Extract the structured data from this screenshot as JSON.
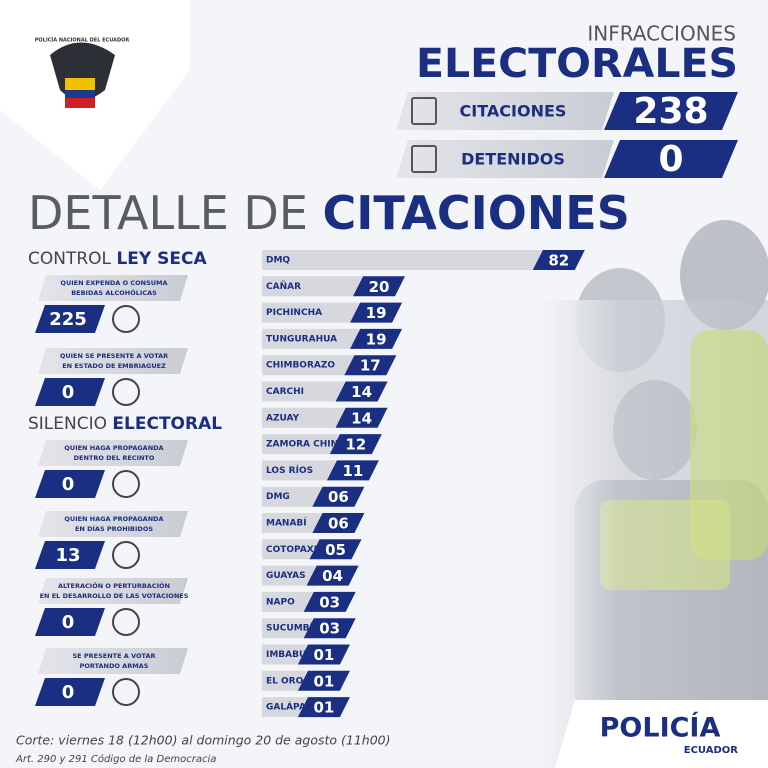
{
  "header": {
    "emblem_text": "POLICÍA NACIONAL DEL ECUADOR",
    "title_top": "INFRACCIONES",
    "title_main": "ELECTORALES",
    "stats": [
      {
        "label": "CITACIONES",
        "value": "238"
      },
      {
        "label": "DETENIDOS",
        "value": "0"
      }
    ]
  },
  "section_title": {
    "light": "DETALLE DE",
    "bold": "CITACIONES"
  },
  "groups": [
    {
      "title_light": "CONTROL",
      "title_bold": "LEY SECA",
      "items": [
        {
          "lines": [
            "QUIEN EXPENDA O CONSUMA",
            "BEBIDAS ALCOHÓLICAS"
          ],
          "count": "225"
        },
        {
          "lines": [
            "QUIEN SE PRESENTE A VOTAR",
            "EN ESTADO DE EMBRIAGUEZ"
          ],
          "count": "0"
        }
      ]
    },
    {
      "title_light": "SILENCIO",
      "title_bold": "ELECTORAL",
      "items": [
        {
          "lines": [
            "QUIEN HAGA PROPAGANDA",
            "DENTRO DEL RECINTO"
          ],
          "count": "0"
        },
        {
          "lines": [
            "QUIEN HAGA PROPAGANDA",
            "EN DÍAS PROHIBIDOS"
          ],
          "count": "13"
        },
        {
          "lines": [
            "ALTERACIÓN O PERTURBACIÓN",
            "EN EL DESARROLLO DE LAS VOTACIONES"
          ],
          "count": "0"
        },
        {
          "lines": [
            "SE PRESENTE A VOTAR",
            "PORTANDO ARMAS"
          ],
          "count": "0"
        }
      ]
    }
  ],
  "chart_data": {
    "type": "bar",
    "orientation": "horizontal",
    "categories": [
      "DMQ",
      "CAÑAR",
      "PICHINCHA",
      "TUNGURAHUA",
      "CHIMBORAZO",
      "CARCHI",
      "AZUAY",
      "ZAMORA CHINCHIPE",
      "LOS RÍOS",
      "DMG",
      "MANABÍ",
      "COTOPAXI",
      "GUAYAS",
      "NAPO",
      "SUCUMBÍOS",
      "IMBABURA",
      "EL ORO",
      "GALÁPAGOS"
    ],
    "values": [
      82,
      20,
      19,
      19,
      17,
      14,
      14,
      12,
      11,
      6,
      6,
      5,
      4,
      3,
      3,
      1,
      1,
      1
    ],
    "value_labels": [
      "82",
      "20",
      "19",
      "19",
      "17",
      "14",
      "14",
      "12",
      "11",
      "06",
      "06",
      "05",
      "04",
      "03",
      "03",
      "01",
      "01",
      "01"
    ],
    "color": "#d6d8de",
    "label_color": "#1b2f82"
  },
  "footer": {
    "period": "Corte: viernes 18 (12h00) al domingo 20 de agosto (11h00)",
    "law": "Art. 290 y 291 Código de la Democracia"
  },
  "logo": {
    "name": "POLICÍA",
    "country": "ECUADOR"
  }
}
